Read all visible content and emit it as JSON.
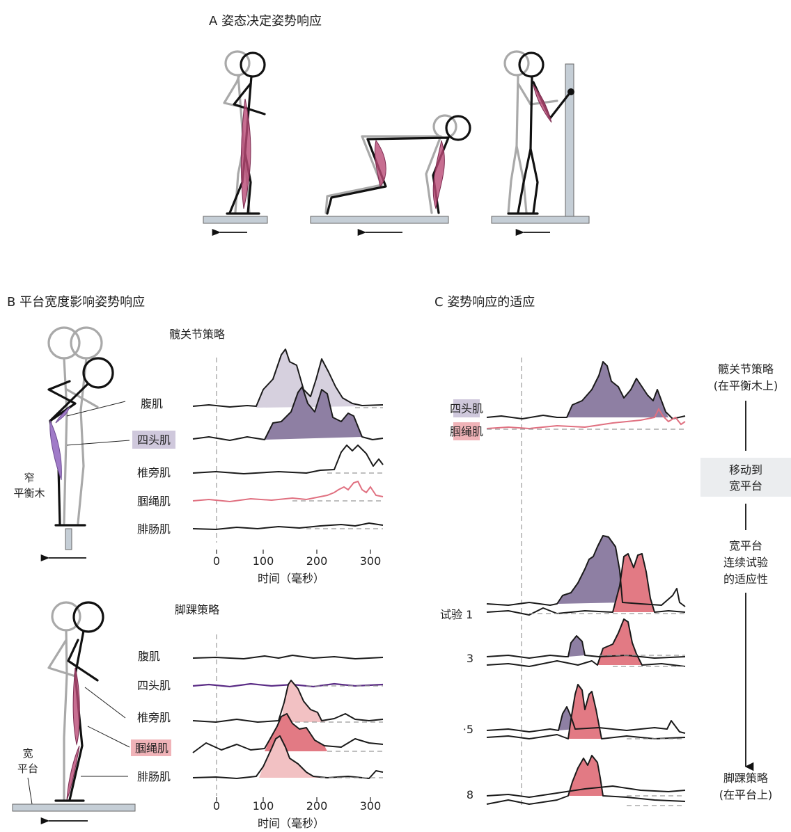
{
  "panel_a": {
    "title": "A  姿态决定姿势响应"
  },
  "panel_b": {
    "title": "B  平台宽度影响姿势响应",
    "hip": {
      "subtitle": "髋关节策略",
      "muscles": [
        "腹肌",
        "四头肌",
        "椎旁肌",
        "腘绳肌",
        "腓肠肌"
      ],
      "beam_label_1": "窄",
      "beam_label_2": "平衡木"
    },
    "ankle": {
      "subtitle": "脚踝策略",
      "muscles": [
        "腹肌",
        "四头肌",
        "椎旁肌",
        "腘绳肌",
        "腓肠肌"
      ],
      "platform_label_1": "宽",
      "platform_label_2": "平台"
    },
    "xticks": [
      "0",
      "100",
      "200",
      "300"
    ],
    "xlabel": "时间（毫秒）"
  },
  "panel_c": {
    "title": "C  姿势响应的适应",
    "muscle_labels": [
      "四头肌",
      "腘绳肌"
    ],
    "top_label_1": "髋关节策略",
    "top_label_2": "(在平衡木上)",
    "box_label_1": "移动到",
    "box_label_2": "宽平台",
    "mid_label_1": "宽平台",
    "mid_label_2": "连续试验",
    "mid_label_3": "的适应性",
    "bottom_label_1": "脚踝策略",
    "bottom_label_2": "(在平台上)",
    "trials": [
      "试验 1",
      "3",
      "·5",
      "8"
    ]
  },
  "colors": {
    "quadriceps": "#8e7fa3",
    "quadriceps_light": "#d6d0de",
    "hamstring": "#e27a84",
    "hamstring_light": "#f2c1c3",
    "muscle_fill": "#b94a76",
    "platform": "#c5ced6"
  }
}
